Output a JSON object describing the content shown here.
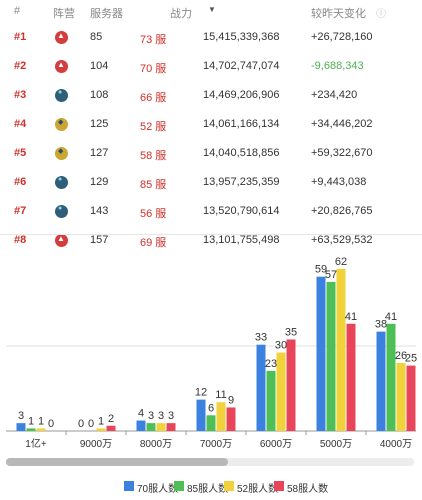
{
  "table": {
    "headers": {
      "rank": "#",
      "camp": "阵营",
      "server": "服务器",
      "power": "战力",
      "change": "较昨天变化"
    },
    "rows": [
      {
        "rank": "#1",
        "camp": "red",
        "server": "85",
        "num": "73 服",
        "power": "15,415,339,368",
        "change": "+26,728,160"
      },
      {
        "rank": "#2",
        "camp": "red",
        "server": "104",
        "num": "70 服",
        "power": "14,702,747,074",
        "change": "-9,688,343"
      },
      {
        "rank": "#3",
        "camp": "blue",
        "server": "108",
        "num": "66 服",
        "power": "14,469,206,906",
        "change": "+234,420"
      },
      {
        "rank": "#4",
        "camp": "yellow",
        "server": "125",
        "num": "52 服",
        "power": "14,061,166,134",
        "change": "+34,446,202"
      },
      {
        "rank": "#5",
        "camp": "yellow",
        "server": "127",
        "num": "58 服",
        "power": "14,040,518,856",
        "change": "+59,322,670"
      },
      {
        "rank": "#6",
        "camp": "blue",
        "server": "129",
        "num": "85 服",
        "power": "13,957,235,359",
        "change": "+9,443,038"
      },
      {
        "rank": "#7",
        "camp": "blue",
        "server": "143",
        "num": "56 服",
        "power": "13,520,790,614",
        "change": "+20,826,765"
      },
      {
        "rank": "#8",
        "camp": "red",
        "server": "157",
        "num": "69 服",
        "power": "13,101,755,498",
        "change": "+63,529,532"
      }
    ]
  },
  "chart_data": {
    "type": "bar",
    "categories": [
      "1亿+",
      "9000万",
      "8000万",
      "7000万",
      "6000万",
      "5000万",
      "4000万"
    ],
    "series": [
      {
        "name": "70服人数",
        "color": "#3b82e0",
        "values": [
          3,
          0,
          4,
          12,
          33,
          59,
          38
        ]
      },
      {
        "name": "85服人数",
        "color": "#4dbf55",
        "values": [
          1,
          0,
          3,
          6,
          23,
          57,
          41
        ]
      },
      {
        "name": "52服人数",
        "color": "#f2d23a",
        "values": [
          1,
          1,
          3,
          11,
          30,
          62,
          26
        ]
      },
      {
        "name": "58服人数",
        "color": "#e8455a",
        "values": [
          0,
          2,
          3,
          9,
          35,
          41,
          25
        ]
      }
    ],
    "legend_position": "bottom",
    "ylim": [
      0,
      65
    ]
  },
  "scrollbar": {
    "position": 0.0
  }
}
